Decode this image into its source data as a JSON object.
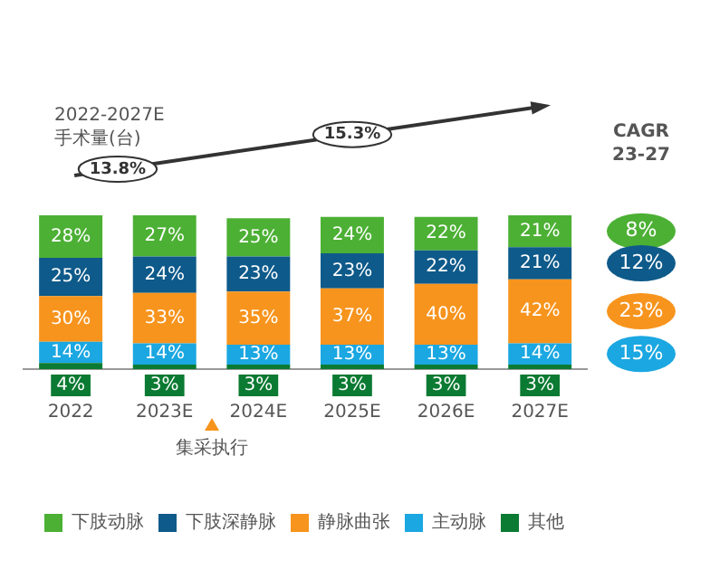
{
  "chart_data": {
    "type": "bar",
    "stacked": true,
    "legend": "bottom",
    "grid": false,
    "tick_labels": "x",
    "categories": [
      "2022",
      "2023E",
      "2024E",
      "2025E",
      "2026E",
      "2027E"
    ],
    "series": [
      {
        "name": "其他",
        "color": "#0b7a32",
        "values": [
          4,
          3,
          3,
          3,
          3,
          3
        ],
        "value_labels": [
          "4%",
          "3%",
          "3%",
          "3%",
          "3%",
          "3%"
        ]
      },
      {
        "name": "主动脉",
        "color": "#1ba7e1",
        "values": [
          14,
          14,
          13,
          13,
          13,
          14
        ],
        "value_labels": [
          "14%",
          "14%",
          "13%",
          "13%",
          "13%",
          "14%"
        ]
      },
      {
        "name": "静脉曲张",
        "color": "#f7941d",
        "values": [
          30,
          33,
          35,
          37,
          40,
          42
        ],
        "value_labels": [
          "30%",
          "33%",
          "35%",
          "37%",
          "40%",
          "42%"
        ]
      },
      {
        "name": "下肢深静脉",
        "color": "#0e5a8a",
        "values": [
          25,
          24,
          23,
          23,
          22,
          21
        ],
        "value_labels": [
          "25%",
          "24%",
          "23%",
          "23%",
          "22%",
          "21%"
        ]
      },
      {
        "name": "下肢动脉",
        "color": "#4cb034",
        "values": [
          28,
          27,
          25,
          24,
          22,
          21
        ],
        "value_labels": [
          "28%",
          "27%",
          "25%",
          "24%",
          "22%",
          "21%"
        ]
      }
    ],
    "annotations": [
      "2022-2027E",
      "手术量(台)",
      "13.8%",
      "15.3%",
      "CAGR",
      "23-27",
      "8%",
      "12%",
      "23%",
      "15%",
      "集采执行"
    ]
  }
}
